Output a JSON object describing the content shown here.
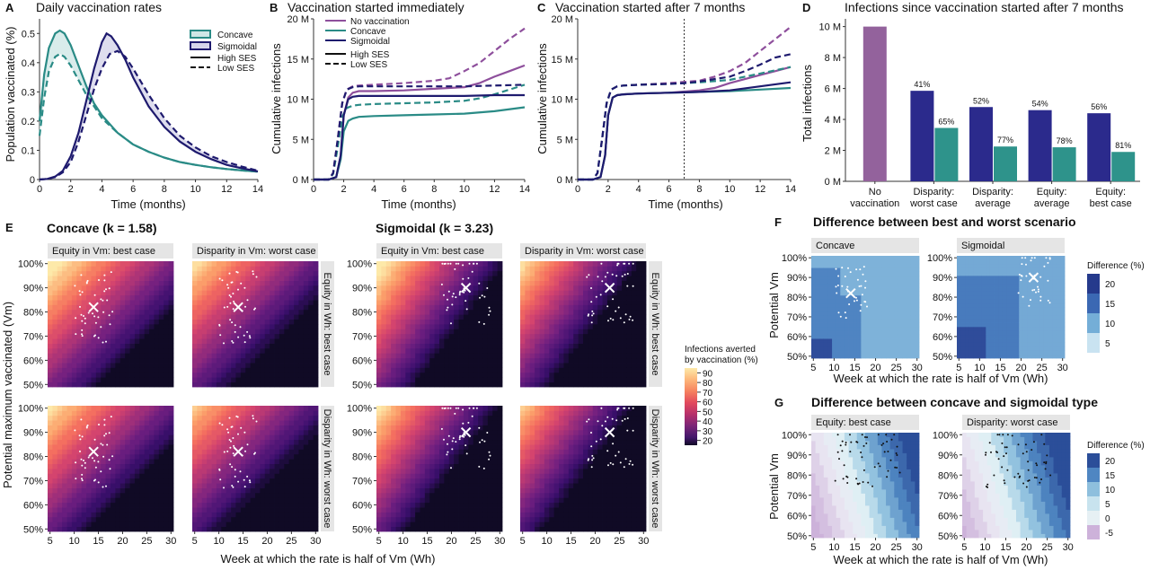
{
  "panels": {
    "A": {
      "letter": "A",
      "title": "Daily vaccination rates",
      "xlabel": "Time (months)",
      "ylabel": "Population vaccinated (%)"
    },
    "B": {
      "letter": "B",
      "title": "Vaccination started immediately",
      "xlabel": "Time (months)",
      "ylabel": "Cumulative infections"
    },
    "C": {
      "letter": "C",
      "title": "Vaccination started after 7 months",
      "xlabel": "Time (months)",
      "ylabel": "Cumulative infections"
    },
    "D": {
      "letter": "D",
      "title": "Infections since vaccination started after 7 months",
      "ylabel": "Total infections"
    },
    "E": {
      "letter": "E",
      "concave_title": "Concave (k = 1.58)",
      "sigmoidal_title": "Sigmoidal (k = 3.23)",
      "col_strips": [
        "Equity in Vm: best case",
        "Disparity in Vm: worst case"
      ],
      "row_strips": [
        "Equity in Wh: best case",
        "Disparity in Wh: worst case"
      ],
      "xlabel": "Week at which the rate is half of Vm (Wh)",
      "ylabel": "Potential maximum vaccinated (Vm)",
      "legend_title_1": "Infections averted",
      "legend_title_2": "by vaccination (%)"
    },
    "F": {
      "letter": "F",
      "title": "Difference between best and worst scenario",
      "strips": [
        "Concave",
        "Sigmoidal"
      ],
      "xlabel": "Week at which the rate is half of Vm (Wh)",
      "ylabel": "Potential Vm",
      "legend_title": "Difference (%)"
    },
    "G": {
      "letter": "G",
      "title": "Difference between concave and sigmoidal type",
      "strips": [
        "Equity: best case",
        "Disparity: worst case"
      ],
      "xlabel": "Week at which the rate is half of Vm (Wh)",
      "ylabel": "Potential Vm",
      "legend_title": "Difference (%)"
    }
  },
  "legend_AB": {
    "concave": "Concave",
    "sigmoidal": "Sigmoidal",
    "high": "High SES",
    "low": "Low SES",
    "novacc": "No vaccination"
  },
  "colors": {
    "concave": "#2a8b86",
    "sigmoidal": "#1e1a6e",
    "novacc": "#8e4f9c",
    "novacc_bar": "#93629c",
    "sig_bar": "#2b2a8c",
    "con_bar": "#2e938b"
  },
  "chart_data": [
    {
      "id": "A",
      "type": "line",
      "xlim": [
        0,
        14
      ],
      "ylim": [
        0,
        0.55
      ],
      "xticks": [
        0,
        2,
        4,
        6,
        8,
        10,
        12,
        14
      ],
      "yticks": [
        0,
        0.1,
        0.2,
        0.3,
        0.4,
        0.5
      ],
      "ytick_labels": [
        "0",
        "0.1",
        "0.2",
        "0.3",
        "0.4",
        "0.5"
      ],
      "series": [
        {
          "name": "Concave High SES",
          "x": [
            0,
            0.3,
            0.6,
            1,
            1.3,
            1.6,
            2,
            2.5,
            3,
            3.5,
            4,
            5,
            6,
            7,
            8,
            9,
            10,
            11,
            12,
            13,
            14
          ],
          "y": [
            0.2,
            0.36,
            0.45,
            0.5,
            0.51,
            0.5,
            0.46,
            0.39,
            0.32,
            0.26,
            0.22,
            0.16,
            0.12,
            0.095,
            0.075,
            0.06,
            0.05,
            0.042,
            0.036,
            0.031,
            0.027
          ]
        },
        {
          "name": "Concave Low SES",
          "x": [
            0,
            0.3,
            0.6,
            1,
            1.3,
            1.6,
            2,
            2.5,
            3,
            3.5,
            4,
            5,
            6,
            7,
            8,
            9,
            10,
            11,
            12,
            13,
            14
          ],
          "y": [
            0.15,
            0.28,
            0.37,
            0.42,
            0.43,
            0.42,
            0.39,
            0.34,
            0.29,
            0.25,
            0.21,
            0.16,
            0.12,
            0.095,
            0.075,
            0.06,
            0.05,
            0.042,
            0.036,
            0.031,
            0.027
          ]
        },
        {
          "name": "Sigmoidal High SES",
          "x": [
            0,
            0.5,
            1,
            1.5,
            2,
            2.5,
            3,
            3.5,
            4,
            4.3,
            4.6,
            5,
            5.5,
            6,
            7,
            8,
            9,
            10,
            11,
            12,
            13,
            14
          ],
          "y": [
            0,
            0.002,
            0.01,
            0.03,
            0.08,
            0.16,
            0.27,
            0.38,
            0.47,
            0.5,
            0.49,
            0.46,
            0.41,
            0.35,
            0.25,
            0.18,
            0.13,
            0.095,
            0.07,
            0.05,
            0.038,
            0.028
          ]
        },
        {
          "name": "Sigmoidal Low SES",
          "x": [
            0,
            0.5,
            1,
            1.5,
            2,
            2.5,
            3,
            3.5,
            4,
            4.5,
            5,
            5.5,
            6,
            7,
            8,
            9,
            10,
            11,
            12,
            13,
            14
          ],
          "y": [
            0,
            0.002,
            0.008,
            0.025,
            0.06,
            0.13,
            0.22,
            0.31,
            0.38,
            0.43,
            0.44,
            0.42,
            0.38,
            0.29,
            0.21,
            0.15,
            0.11,
            0.08,
            0.06,
            0.044,
            0.03
          ]
        }
      ]
    },
    {
      "id": "B",
      "type": "line",
      "xlim": [
        0,
        14
      ],
      "ylim": [
        0,
        20
      ],
      "xticks": [
        0,
        2,
        4,
        6,
        8,
        10,
        12,
        14
      ],
      "yticks": [
        0,
        5,
        10,
        15,
        20
      ],
      "ytick_labels": [
        "0 M",
        "5 M",
        "10 M",
        "15 M",
        "20 M"
      ],
      "series": [
        {
          "name": "No vaccination High SES",
          "x": [
            0,
            1,
            1.5,
            1.8,
            2,
            2.3,
            2.6,
            3,
            4,
            6,
            8,
            9,
            10,
            11,
            12,
            13,
            14
          ],
          "y": [
            0,
            0,
            0.3,
            3,
            8,
            10.2,
            10.8,
            11,
            11,
            11.1,
            11.3,
            11.4,
            11.5,
            12,
            12.8,
            13.5,
            14.2
          ]
        },
        {
          "name": "No vaccination Low SES",
          "x": [
            0,
            1,
            1.3,
            1.6,
            1.9,
            2.2,
            2.6,
            3,
            4,
            6,
            8,
            9,
            10,
            11,
            12,
            13,
            14
          ],
          "y": [
            0,
            0,
            0.8,
            5,
            9.5,
            11.2,
            11.6,
            11.7,
            11.8,
            12,
            12.3,
            12.6,
            13.5,
            14.5,
            16,
            17.5,
            18.8
          ]
        },
        {
          "name": "Concave High SES",
          "x": [
            0,
            1,
            1.5,
            1.8,
            2,
            2.3,
            2.6,
            3,
            4,
            6,
            8,
            10,
            12,
            14
          ],
          "y": [
            0,
            0,
            0.3,
            2.5,
            6,
            7.3,
            7.6,
            7.8,
            7.9,
            8,
            8.1,
            8.2,
            8.5,
            9
          ]
        },
        {
          "name": "Concave Low SES",
          "x": [
            0,
            1,
            1.3,
            1.6,
            1.9,
            2.2,
            2.6,
            3,
            4,
            6,
            8,
            10,
            11,
            12,
            13,
            14
          ],
          "y": [
            0,
            0,
            0.7,
            4,
            7.8,
            8.9,
            9.2,
            9.3,
            9.4,
            9.5,
            9.6,
            9.8,
            10.1,
            10.6,
            11.2,
            11.8
          ]
        },
        {
          "name": "Sigmoidal High SES",
          "x": [
            0,
            1,
            1.5,
            1.8,
            2,
            2.3,
            2.6,
            3,
            4,
            6,
            8,
            10,
            12,
            14
          ],
          "y": [
            0,
            0,
            0.3,
            3,
            8,
            10,
            10.3,
            10.4,
            10.4,
            10.4,
            10.4,
            10.4,
            10.5,
            10.5
          ]
        },
        {
          "name": "Sigmoidal Low SES",
          "x": [
            0,
            1,
            1.3,
            1.6,
            1.9,
            2.2,
            2.6,
            3,
            4,
            6,
            8,
            10,
            12,
            14
          ],
          "y": [
            0,
            0,
            0.8,
            5,
            9.5,
            11.2,
            11.5,
            11.6,
            11.6,
            11.6,
            11.6,
            11.6,
            11.7,
            11.8
          ]
        }
      ]
    },
    {
      "id": "C",
      "type": "line",
      "xlim": [
        0,
        14
      ],
      "ylim": [
        0,
        20
      ],
      "vline": 7,
      "xticks": [
        0,
        2,
        4,
        6,
        8,
        10,
        12,
        14
      ],
      "yticks": [
        0,
        5,
        10,
        15,
        20
      ],
      "ytick_labels": [
        "0 M",
        "5 M",
        "10 M",
        "15 M",
        "20 M"
      ],
      "series": [
        {
          "name": "No vaccination High SES",
          "x": [
            0,
            1,
            1.5,
            1.8,
            2,
            2.3,
            2.6,
            3,
            4,
            6,
            8,
            9,
            10,
            11,
            12,
            13,
            14
          ],
          "y": [
            0,
            0,
            0.3,
            3,
            8,
            10.2,
            10.5,
            10.6,
            10.7,
            10.8,
            11.1,
            11.4,
            12,
            12.5,
            13,
            13.5,
            14
          ]
        },
        {
          "name": "No vaccination Low SES",
          "x": [
            0,
            1,
            1.3,
            1.6,
            1.9,
            2.2,
            2.6,
            3,
            4,
            6,
            8,
            9,
            10,
            11,
            12,
            13,
            14
          ],
          "y": [
            0,
            0,
            0.8,
            5,
            9.5,
            11.2,
            11.6,
            11.7,
            11.8,
            12,
            12.3,
            12.8,
            13.5,
            14.5,
            16,
            17.5,
            19
          ]
        },
        {
          "name": "Concave High SES",
          "x": [
            0,
            1,
            1.5,
            1.8,
            2,
            2.3,
            2.6,
            3,
            4,
            6,
            7,
            8,
            10,
            12,
            14
          ],
          "y": [
            0,
            0,
            0.3,
            3,
            8,
            10.2,
            10.5,
            10.6,
            10.7,
            10.8,
            10.85,
            10.9,
            11,
            11.2,
            11.4
          ]
        },
        {
          "name": "Concave Low SES",
          "x": [
            0,
            1,
            1.3,
            1.6,
            1.9,
            2.2,
            2.6,
            3,
            4,
            6,
            7,
            8,
            10,
            11,
            12,
            13,
            14
          ],
          "y": [
            0,
            0,
            0.8,
            5,
            9.5,
            11.2,
            11.6,
            11.7,
            11.8,
            11.9,
            12,
            12.1,
            12.4,
            12.8,
            13.2,
            13.6,
            14
          ]
        },
        {
          "name": "Sigmoidal High SES",
          "x": [
            0,
            1,
            1.5,
            1.8,
            2,
            2.3,
            2.6,
            3,
            4,
            6,
            7,
            8,
            10,
            12,
            14
          ],
          "y": [
            0,
            0,
            0.3,
            3,
            8,
            10.2,
            10.5,
            10.6,
            10.7,
            10.8,
            10.85,
            10.9,
            11.1,
            11.6,
            12.1
          ]
        },
        {
          "name": "Sigmoidal Low SES",
          "x": [
            0,
            1,
            1.3,
            1.6,
            1.9,
            2.2,
            2.6,
            3,
            4,
            6,
            7,
            8,
            10,
            11,
            12,
            13,
            14
          ],
          "y": [
            0,
            0,
            0.8,
            5,
            9.5,
            11.2,
            11.6,
            11.7,
            11.8,
            11.9,
            12,
            12.2,
            12.8,
            13.5,
            14.3,
            15.2,
            15.6
          ]
        }
      ]
    },
    {
      "id": "D",
      "type": "bar",
      "ylim": [
        0,
        10.5
      ],
      "yticks": [
        0,
        2,
        4,
        6,
        8,
        10
      ],
      "ytick_labels": [
        "0 M",
        "2 M",
        "4 M",
        "6 M",
        "8 M",
        "10 M"
      ],
      "categories": [
        "No vaccination",
        "Disparity: worst case",
        "Disparity: average",
        "Equity: average",
        "Equity: best case"
      ],
      "category_lines": [
        [
          "No",
          "vaccination"
        ],
        [
          "Disparity:",
          "worst case"
        ],
        [
          "Disparity:",
          "average"
        ],
        [
          "Equity:",
          "average"
        ],
        [
          "Equity:",
          "best case"
        ]
      ],
      "novacc_value": 10.0,
      "series": [
        {
          "name": "Sigmoidal",
          "values": [
            null,
            5.85,
            4.8,
            4.6,
            4.4
          ],
          "labels": [
            "",
            "41%",
            "52%",
            "54%",
            "56%"
          ]
        },
        {
          "name": "Concave",
          "values": [
            null,
            3.45,
            2.25,
            2.2,
            1.9
          ],
          "labels": [
            "",
            "65%",
            "77%",
            "78%",
            "81%"
          ]
        }
      ]
    },
    {
      "id": "E",
      "type": "heatmap",
      "x_range": [
        5,
        30
      ],
      "y_range": [
        50,
        100
      ],
      "xticks": [
        5,
        10,
        15,
        20,
        25,
        30
      ],
      "yticks": [
        50,
        60,
        70,
        80,
        90,
        100
      ],
      "ytick_labels": [
        "50%",
        "60%",
        "70%",
        "80%",
        "90%",
        "100%"
      ],
      "legend_values": [
        90,
        80,
        70,
        60,
        50,
        40,
        30,
        20
      ],
      "markers": {
        "concave": [
          14,
          82
        ],
        "sigmoidal": [
          23,
          90
        ]
      }
    },
    {
      "id": "F",
      "type": "heatmap",
      "x_range": [
        5,
        30
      ],
      "y_range": [
        50,
        100
      ],
      "xticks": [
        5,
        10,
        15,
        20,
        25,
        30
      ],
      "yticks": [
        50,
        60,
        70,
        80,
        90,
        100
      ],
      "ytick_labels": [
        "50%",
        "60%",
        "70%",
        "80%",
        "90%",
        "100%"
      ],
      "legend_values": [
        20,
        15,
        10,
        5
      ],
      "markers": {
        "concave": [
          14,
          82
        ],
        "sigmoidal": [
          23,
          90
        ]
      }
    },
    {
      "id": "G",
      "type": "heatmap",
      "x_range": [
        5,
        30
      ],
      "y_range": [
        50,
        100
      ],
      "xticks": [
        5,
        10,
        15,
        20,
        25,
        30
      ],
      "yticks": [
        50,
        60,
        70,
        80,
        90,
        100
      ],
      "ytick_labels": [
        "50%",
        "60%",
        "70%",
        "80%",
        "90%",
        "100%"
      ],
      "legend_values": [
        20,
        15,
        10,
        5,
        0,
        -5
      ]
    }
  ]
}
